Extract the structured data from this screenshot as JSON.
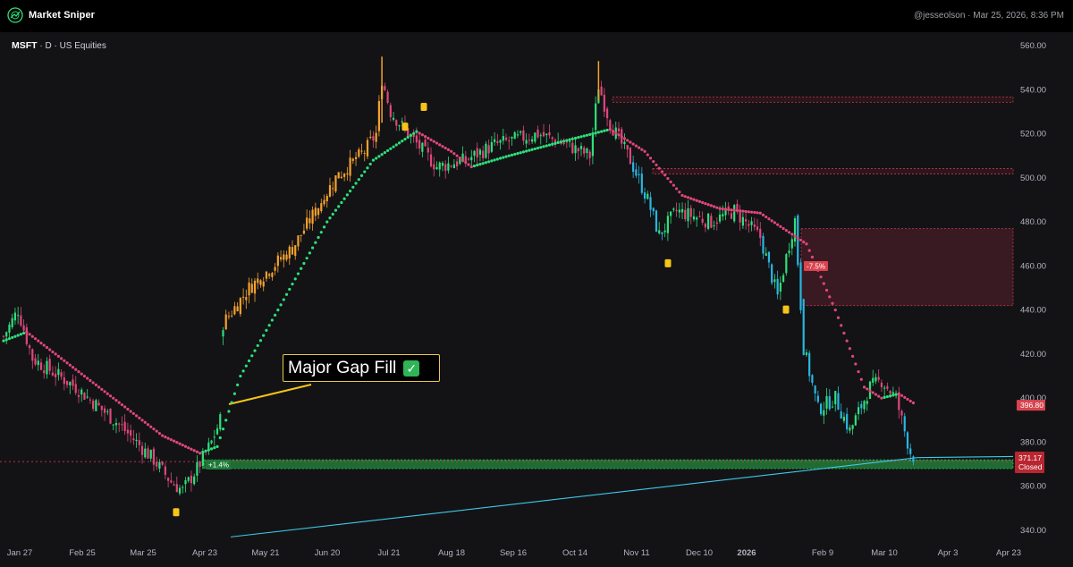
{
  "header": {
    "brand": "Market Sniper",
    "meta": "@jesseolson · Mar 25, 2026, 8:36 PM"
  },
  "instrument": {
    "symbol": "MSFT",
    "details": "· D · US Equities"
  },
  "annotation": {
    "text": "Major Gap Fill",
    "icon": "check-mark-button-icon"
  },
  "colors": {
    "bull_green": "#2ee07a",
    "bull_orange": "#f4a22d",
    "bear_pink": "#e0477a",
    "bear_cyan": "#29b6e0",
    "trendline": "#3fc8e8",
    "gap_zone": "#1f6b33",
    "resistance_zone": "#3a1a22",
    "marker_yellow": "#f5c518"
  },
  "chart_data": {
    "type": "candlestick",
    "x_ticks": [
      "Jan 27",
      "Feb 25",
      "Mar 25",
      "Apr 23",
      "May 21",
      "Jun 20",
      "Jul 21",
      "Aug 18",
      "Sep 16",
      "Oct 14",
      "Nov 11",
      "Dec 10",
      "2026",
      "Feb 9",
      "Mar 10",
      "Apr 3",
      "Apr 23"
    ],
    "y_ticks": [
      "560.00",
      "540.00",
      "520.00",
      "500.00",
      "480.00",
      "460.00",
      "440.00",
      "420.00",
      "400.00",
      "380.00",
      "360.00",
      "340.00"
    ],
    "ylim": [
      332,
      570
    ],
    "anchors": [
      {
        "i": 0,
        "c": 428
      },
      {
        "i": 5,
        "c": 440
      },
      {
        "i": 10,
        "c": 418
      },
      {
        "i": 25,
        "c": 405
      },
      {
        "i": 40,
        "c": 388
      },
      {
        "i": 52,
        "c": 372
      },
      {
        "i": 58,
        "c": 362
      },
      {
        "i": 62,
        "c": 358
      },
      {
        "i": 67,
        "c": 368
      },
      {
        "i": 72,
        "c": 380
      },
      {
        "i": 75,
        "c": 390
      },
      {
        "i": 76,
        "c": 434
      },
      {
        "i": 85,
        "c": 450
      },
      {
        "i": 100,
        "c": 468
      },
      {
        "i": 115,
        "c": 500
      },
      {
        "i": 125,
        "c": 512
      },
      {
        "i": 129,
        "c": 520
      },
      {
        "i": 131,
        "c": 545
      },
      {
        "i": 134,
        "c": 530
      },
      {
        "i": 140,
        "c": 520
      },
      {
        "i": 150,
        "c": 505
      },
      {
        "i": 160,
        "c": 508
      },
      {
        "i": 170,
        "c": 515
      },
      {
        "i": 185,
        "c": 520
      },
      {
        "i": 195,
        "c": 515
      },
      {
        "i": 203,
        "c": 510
      },
      {
        "i": 206,
        "c": 542
      },
      {
        "i": 210,
        "c": 525
      },
      {
        "i": 217,
        "c": 508
      },
      {
        "i": 223,
        "c": 490
      },
      {
        "i": 227,
        "c": 474
      },
      {
        "i": 233,
        "c": 485
      },
      {
        "i": 245,
        "c": 480
      },
      {
        "i": 253,
        "c": 485
      },
      {
        "i": 262,
        "c": 473
      },
      {
        "i": 268,
        "c": 446
      },
      {
        "i": 272,
        "c": 470
      },
      {
        "i": 274,
        "c": 481
      },
      {
        "i": 277,
        "c": 423
      },
      {
        "i": 282,
        "c": 395
      },
      {
        "i": 288,
        "c": 400
      },
      {
        "i": 293,
        "c": 385
      },
      {
        "i": 300,
        "c": 405
      },
      {
        "i": 304,
        "c": 408
      },
      {
        "i": 309,
        "c": 400
      },
      {
        "i": 313,
        "c": 380
      },
      {
        "i": 315,
        "c": 371.17
      }
    ],
    "moving_average": [
      {
        "i": 0,
        "v": 426
      },
      {
        "i": 8,
        "v": 430
      },
      {
        "i": 30,
        "v": 408
      },
      {
        "i": 55,
        "v": 383
      },
      {
        "i": 68,
        "v": 375
      },
      {
        "i": 74,
        "v": 378
      },
      {
        "i": 82,
        "v": 410
      },
      {
        "i": 95,
        "v": 440
      },
      {
        "i": 112,
        "v": 480
      },
      {
        "i": 128,
        "v": 508
      },
      {
        "i": 143,
        "v": 521
      },
      {
        "i": 155,
        "v": 512
      },
      {
        "i": 162,
        "v": 505
      },
      {
        "i": 175,
        "v": 510
      },
      {
        "i": 195,
        "v": 517
      },
      {
        "i": 210,
        "v": 522
      },
      {
        "i": 222,
        "v": 512
      },
      {
        "i": 235,
        "v": 492
      },
      {
        "i": 248,
        "v": 486
      },
      {
        "i": 262,
        "v": 484
      },
      {
        "i": 278,
        "v": 470
      },
      {
        "i": 288,
        "v": 440
      },
      {
        "i": 298,
        "v": 405
      },
      {
        "i": 304,
        "v": 400
      },
      {
        "i": 310,
        "v": 402
      },
      {
        "i": 316,
        "v": 397
      }
    ],
    "levels": {
      "resistance_1": 535.5,
      "resistance_2": 503,
      "gap_zone": [
        368,
        372
      ],
      "resistance_zone": [
        442,
        477
      ]
    },
    "trendline": [
      [
        337,
        314
      ],
      [
        373,
        372
      ]
    ],
    "labels": {
      "gap_fill_pct": "+1.4%",
      "drop_pct": "-7.5%",
      "last_price": "396.80",
      "close_price": "371.17",
      "close_status": "Closed"
    }
  }
}
